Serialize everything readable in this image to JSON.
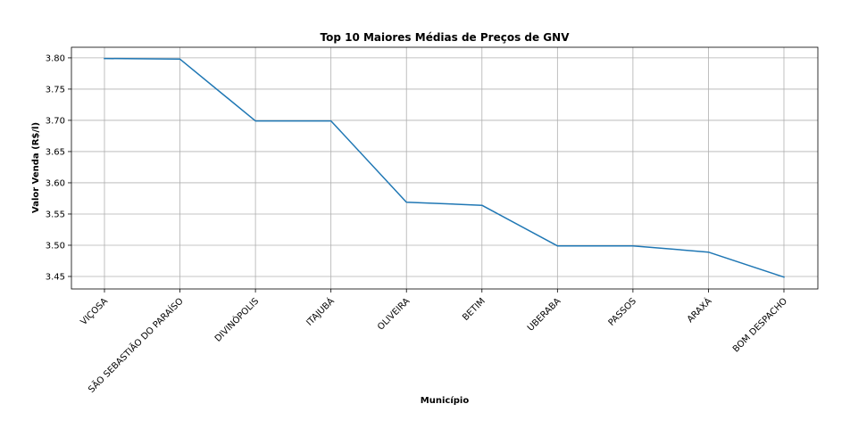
{
  "chart_data": {
    "type": "line",
    "title": "Top 10 Maiores Médias de Preços de GNV",
    "xlabel": "Município",
    "ylabel": "Valor Venda (R$/l)",
    "categories": [
      "VIÇOSA",
      "SÃO SEBASTIÃO DO PARAÍSO",
      "DIVINÓPOLIS",
      "ITAJUBÁ",
      "OLIVEIRA",
      "BETIM",
      "UBERABA",
      "PASSOS",
      "ARAXÁ",
      "BOM DESPACHO"
    ],
    "series": [
      {
        "values": [
          3.799,
          3.798,
          3.699,
          3.699,
          3.569,
          3.564,
          3.499,
          3.499,
          3.489,
          3.449
        ],
        "color": "#1f77b4"
      }
    ],
    "ylim": [
      3.43,
      3.817
    ],
    "yticks": [
      3.45,
      3.5,
      3.55,
      3.6,
      3.65,
      3.7,
      3.75,
      3.8
    ],
    "ytick_labels": [
      "3.45",
      "3.50",
      "3.55",
      "3.60",
      "3.65",
      "3.70",
      "3.75",
      "3.80"
    ],
    "grid": true,
    "xtick_rotation": 45
  }
}
